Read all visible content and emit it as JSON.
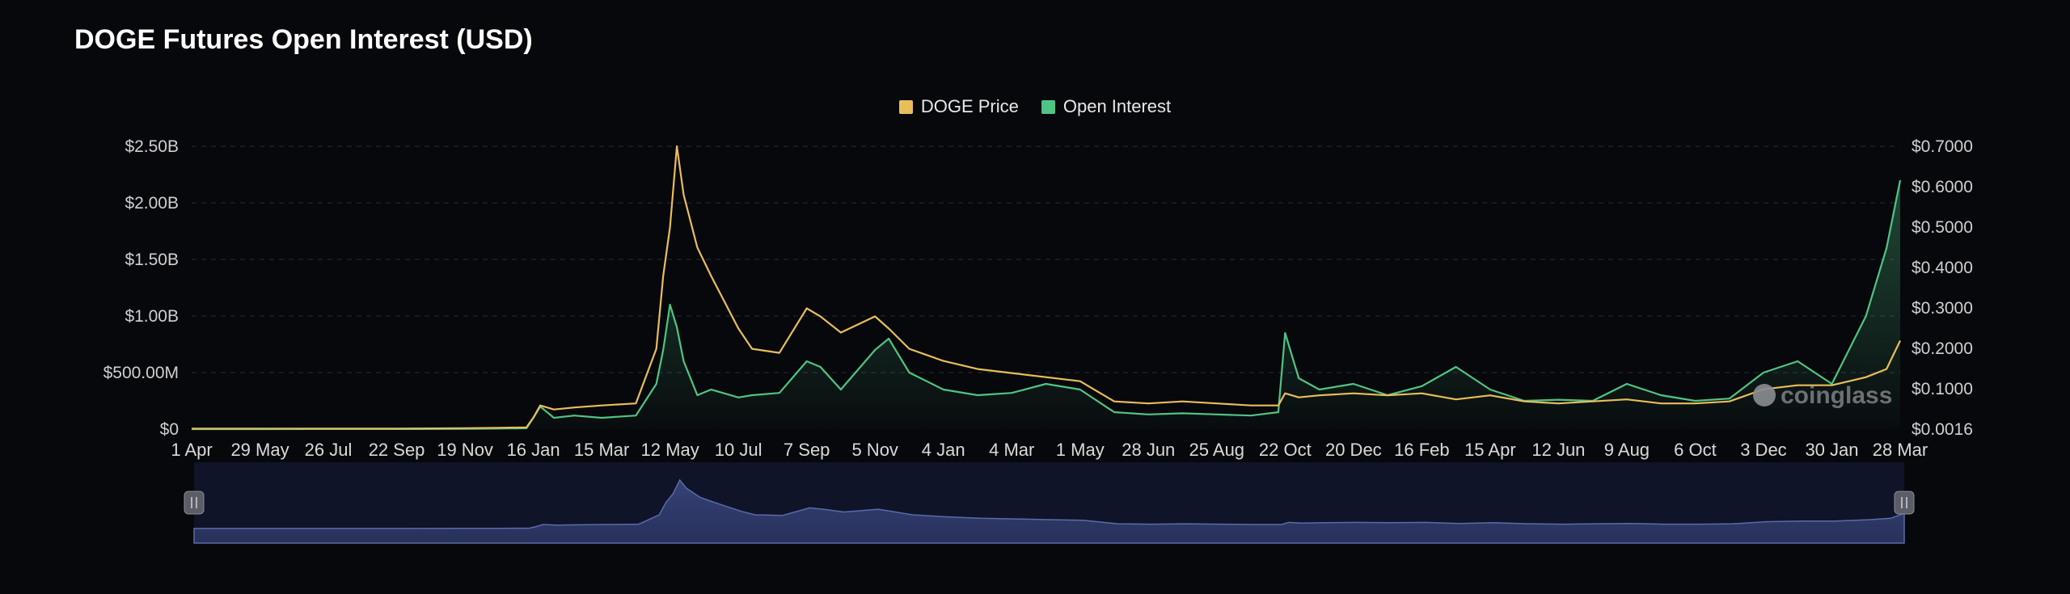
{
  "title": "DOGE Futures Open Interest (USD)",
  "watermark": "coinglass",
  "colors": {
    "price": "#e8bd5a",
    "oi": "#4fc484",
    "background": "#07080c",
    "navigator": "#1b2340"
  },
  "chart_data": {
    "type": "line",
    "title": "DOGE Futures Open Interest (USD)",
    "legend": {
      "position": "top-center",
      "entries": [
        "DOGE Price",
        "Open Interest"
      ]
    },
    "grid": true,
    "x_labels": [
      "1 Apr",
      "29 May",
      "26 Jul",
      "22 Sep",
      "19 Nov",
      "16 Jan",
      "15 Mar",
      "12 May",
      "10 Jul",
      "7 Sep",
      "5 Nov",
      "4 Jan",
      "4 Mar",
      "1 May",
      "28 Jun",
      "25 Aug",
      "22 Oct",
      "20 Dec",
      "16 Feb",
      "15 Apr",
      "12 Jun",
      "9 Aug",
      "6 Oct",
      "3 Dec",
      "30 Jan",
      "28 Mar"
    ],
    "y_left": {
      "labels": [
        "$0",
        "$500.00M",
        "$1.00B",
        "$1.50B",
        "$2.00B",
        "$2.50B"
      ],
      "ylim": [
        0,
        2500000000
      ]
    },
    "y_right": {
      "labels": [
        "$0.0016",
        "$0.1000",
        "$0.2000",
        "$0.3000",
        "$0.4000",
        "$0.5000",
        "$0.6000",
        "$0.7000"
      ],
      "ylim": [
        0.0016,
        0.7
      ]
    },
    "series": [
      {
        "name": "DOGE Price",
        "axis": "right",
        "color": "#e8bd5a",
        "points": [
          [
            0,
            0.003
          ],
          [
            1,
            0.003
          ],
          [
            2,
            0.003
          ],
          [
            3,
            0.003
          ],
          [
            4,
            0.004
          ],
          [
            4.5,
            0.005
          ],
          [
            4.9,
            0.006
          ],
          [
            5,
            0.03
          ],
          [
            5.1,
            0.06
          ],
          [
            5.3,
            0.05
          ],
          [
            5.6,
            0.055
          ],
          [
            6,
            0.06
          ],
          [
            6.5,
            0.065
          ],
          [
            6.8,
            0.2
          ],
          [
            6.9,
            0.38
          ],
          [
            7,
            0.5
          ],
          [
            7.1,
            0.7
          ],
          [
            7.2,
            0.58
          ],
          [
            7.4,
            0.45
          ],
          [
            7.6,
            0.38
          ],
          [
            8,
            0.25
          ],
          [
            8.2,
            0.2
          ],
          [
            8.6,
            0.19
          ],
          [
            9,
            0.3
          ],
          [
            9.2,
            0.28
          ],
          [
            9.5,
            0.24
          ],
          [
            10,
            0.28
          ],
          [
            10.2,
            0.25
          ],
          [
            10.5,
            0.2
          ],
          [
            11,
            0.17
          ],
          [
            11.5,
            0.15
          ],
          [
            12,
            0.14
          ],
          [
            12.5,
            0.13
          ],
          [
            13,
            0.12
          ],
          [
            13.5,
            0.07
          ],
          [
            14,
            0.065
          ],
          [
            14.5,
            0.07
          ],
          [
            15,
            0.065
          ],
          [
            15.5,
            0.06
          ],
          [
            15.9,
            0.06
          ],
          [
            16,
            0.09
          ],
          [
            16.2,
            0.08
          ],
          [
            16.5,
            0.085
          ],
          [
            17,
            0.09
          ],
          [
            17.5,
            0.085
          ],
          [
            18,
            0.09
          ],
          [
            18.5,
            0.075
          ],
          [
            19,
            0.085
          ],
          [
            19.5,
            0.07
          ],
          [
            20,
            0.065
          ],
          [
            20.5,
            0.07
          ],
          [
            21,
            0.075
          ],
          [
            21.5,
            0.065
          ],
          [
            22,
            0.065
          ],
          [
            22.5,
            0.07
          ],
          [
            23,
            0.1
          ],
          [
            23.5,
            0.11
          ],
          [
            24,
            0.11
          ],
          [
            24.5,
            0.13
          ],
          [
            24.8,
            0.15
          ],
          [
            25,
            0.22
          ]
        ]
      },
      {
        "name": "Open Interest",
        "axis": "left",
        "color": "#4fc484",
        "points": [
          [
            0,
            0
          ],
          [
            1,
            0
          ],
          [
            2,
            1000000
          ],
          [
            3,
            1000000
          ],
          [
            4,
            2000000
          ],
          [
            4.5,
            5000000
          ],
          [
            4.9,
            8000000
          ],
          [
            5,
            100000000
          ],
          [
            5.1,
            200000000
          ],
          [
            5.3,
            100000000
          ],
          [
            5.6,
            120000000
          ],
          [
            6,
            100000000
          ],
          [
            6.5,
            120000000
          ],
          [
            6.8,
            400000000
          ],
          [
            6.9,
            700000000
          ],
          [
            7,
            1100000000
          ],
          [
            7.1,
            900000000
          ],
          [
            7.2,
            600000000
          ],
          [
            7.4,
            300000000
          ],
          [
            7.6,
            350000000
          ],
          [
            8,
            280000000
          ],
          [
            8.2,
            300000000
          ],
          [
            8.6,
            320000000
          ],
          [
            9,
            600000000
          ],
          [
            9.2,
            550000000
          ],
          [
            9.5,
            350000000
          ],
          [
            10,
            700000000
          ],
          [
            10.2,
            800000000
          ],
          [
            10.5,
            500000000
          ],
          [
            11,
            350000000
          ],
          [
            11.5,
            300000000
          ],
          [
            12,
            320000000
          ],
          [
            12.5,
            400000000
          ],
          [
            13,
            350000000
          ],
          [
            13.5,
            150000000
          ],
          [
            14,
            130000000
          ],
          [
            14.5,
            140000000
          ],
          [
            15,
            130000000
          ],
          [
            15.5,
            120000000
          ],
          [
            15.9,
            150000000
          ],
          [
            16,
            850000000
          ],
          [
            16.2,
            450000000
          ],
          [
            16.5,
            350000000
          ],
          [
            17,
            400000000
          ],
          [
            17.5,
            300000000
          ],
          [
            18,
            380000000
          ],
          [
            18.5,
            550000000
          ],
          [
            19,
            350000000
          ],
          [
            19.5,
            250000000
          ],
          [
            20,
            260000000
          ],
          [
            20.5,
            250000000
          ],
          [
            21,
            400000000
          ],
          [
            21.5,
            300000000
          ],
          [
            22,
            250000000
          ],
          [
            22.5,
            270000000
          ],
          [
            23,
            500000000
          ],
          [
            23.5,
            600000000
          ],
          [
            24,
            400000000
          ],
          [
            24.5,
            1000000000
          ],
          [
            24.8,
            1600000000
          ],
          [
            25,
            2200000000
          ]
        ]
      }
    ]
  },
  "navigator": {
    "min_handle": "min-handle",
    "max_handle": "max-handle"
  }
}
